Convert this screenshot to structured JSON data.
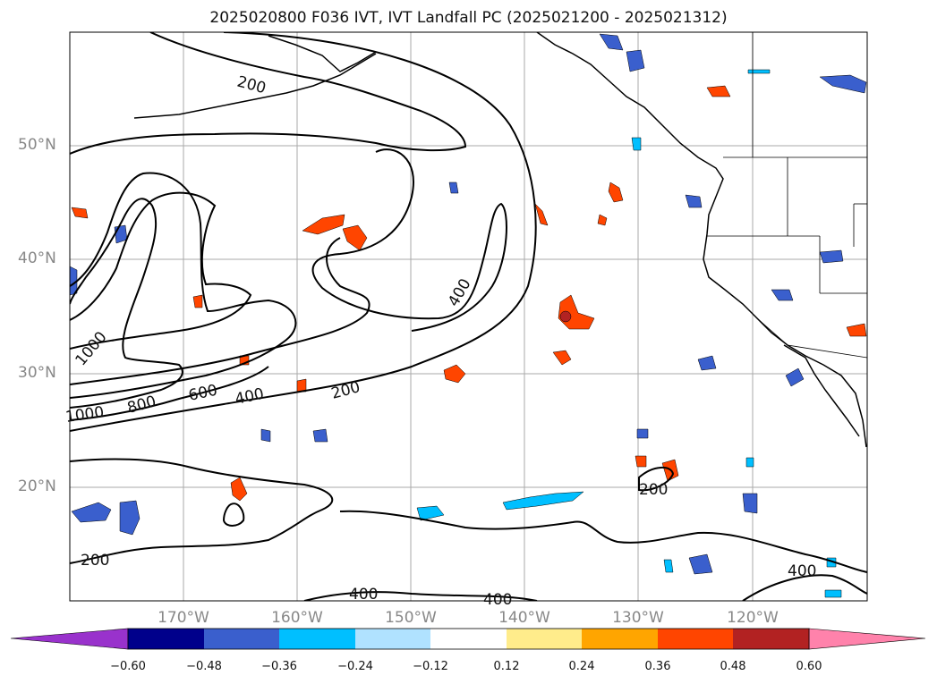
{
  "title": "2025020800 F036 IVT, IVT Landfall PC (2025021200 - 2025021312)",
  "lat_labels": [
    "50°N",
    "40°N",
    "30°N",
    "20°N"
  ],
  "lon_labels": [
    "170°W",
    "160°W",
    "150°W",
    "140°W",
    "130°W",
    "120°W"
  ],
  "contour_labels": [
    "200",
    "200",
    "200",
    "200",
    "400",
    "400",
    "400",
    "400",
    "400",
    "600",
    "800",
    "1000",
    "1000"
  ],
  "colorbar": {
    "ticks": [
      "−0.60",
      "−0.48",
      "−0.36",
      "−0.24",
      "−0.12",
      "0.12",
      "0.24",
      "0.36",
      "0.48",
      "0.60"
    ],
    "colors": [
      "#9932cc",
      "#00008b",
      "#3a5fcd",
      "#00bfff",
      "#b0e2ff",
      "#ffffff",
      "#ffec8b",
      "#ffa500",
      "#ff4500",
      "#b22222",
      "#ff82ab"
    ]
  },
  "colors": {
    "contour": "#000000",
    "grid": "#aaaaaa",
    "coast": "#000000",
    "label": "#888888"
  }
}
